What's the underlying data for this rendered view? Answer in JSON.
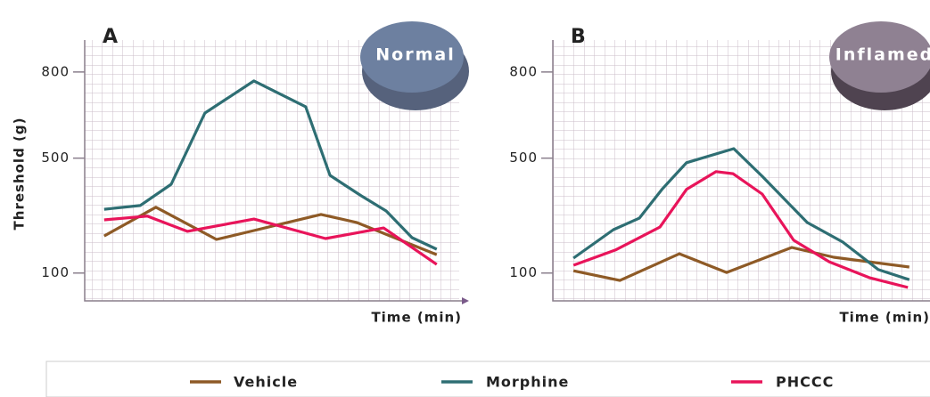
{
  "chart_data": [
    {
      "type": "line",
      "panel": "A",
      "badge": "Normal",
      "ylabel": "Threshold (g)",
      "xlabel": "Time (min)",
      "xlim": [
        0,
        100
      ],
      "ylim": [
        0,
        900
      ],
      "yticks": [
        100,
        500,
        800
      ],
      "grid": true,
      "series": [
        {
          "name": "Vehicle",
          "color": "#8e5a26",
          "x": [
            5.2,
            19,
            35.2,
            45.2,
            63.1,
            72.6,
            94
          ],
          "values": [
            229,
            329,
            217,
            248,
            304,
            276,
            164
          ]
        },
        {
          "name": "Morphine",
          "color": "#2e6e73",
          "x": [
            5.2,
            14.8,
            23.1,
            32.1,
            45.2,
            59,
            65.5,
            73.8,
            80.5,
            87.4,
            94
          ],
          "values": [
            322,
            335,
            409,
            657,
            769,
            679,
            440,
            369,
            316,
            223,
            183
          ]
        },
        {
          "name": "PHCCC",
          "color": "#e8145a",
          "x": [
            5.2,
            16.7,
            27.4,
            45.2,
            64.3,
            79.8,
            94
          ],
          "values": [
            285,
            298,
            245,
            288,
            220,
            257,
            130
          ]
        }
      ]
    },
    {
      "type": "line",
      "panel": "B",
      "badge": "Inflamed",
      "xlabel": "Time (min)",
      "xlim": [
        0,
        100
      ],
      "ylim": [
        0,
        900
      ],
      "yticks": [
        100,
        500,
        800
      ],
      "grid": true,
      "series": [
        {
          "name": "Vehicle",
          "color": "#8e5a26",
          "x": [
            5.5,
            17.9,
            33.8,
            46.4,
            63.8,
            75,
            95.2
          ],
          "values": [
            108,
            74,
            167,
            102,
            189,
            155,
            121
          ]
        },
        {
          "name": "Morphine",
          "color": "#2e6e73",
          "x": [
            5.5,
            16.2,
            23.1,
            29.3,
            35.7,
            48.3,
            55.9,
            67.9,
            77.4,
            86.9,
            95.2
          ],
          "values": [
            152,
            251,
            291,
            394,
            484,
            533,
            437,
            276,
            208,
            112,
            77
          ]
        },
        {
          "name": "PHCCC",
          "color": "#e8145a",
          "x": [
            5.5,
            16.7,
            28.6,
            35.7,
            43.6,
            48.1,
            55.9,
            64.3,
            73.8,
            84.5,
            94.8
          ],
          "values": [
            127,
            180,
            260,
            391,
            453,
            446,
            375,
            214,
            139,
            84,
            50
          ]
        }
      ]
    }
  ]
}
